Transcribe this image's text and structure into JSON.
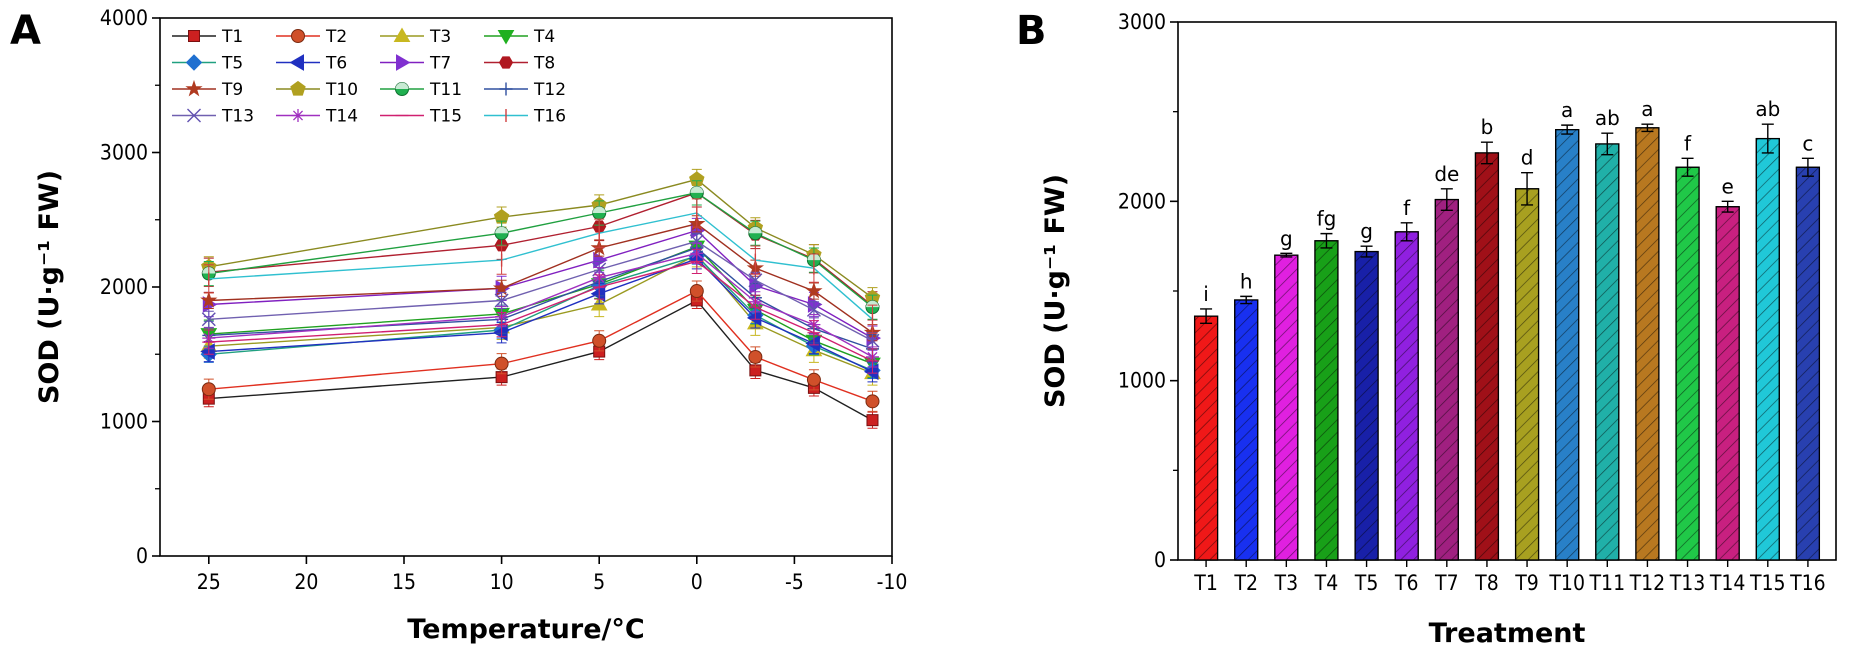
{
  "chart_data": [
    {
      "panel": "A",
      "type": "line",
      "xlabel": "Temperature/°C",
      "ylabel": "SOD (U·g⁻¹ FW)",
      "x": [
        25,
        10,
        5,
        0,
        -3,
        -6,
        -9
      ],
      "xticks": [
        "25",
        "20",
        "15",
        "10",
        "5",
        "0",
        "-5",
        "-10"
      ],
      "xtick_values": [
        25,
        20,
        15,
        10,
        5,
        0,
        -5,
        -10
      ],
      "xlim": [
        27.5,
        -10
      ],
      "ylim": [
        0,
        4000
      ],
      "yticks": [
        0,
        1000,
        2000,
        3000,
        4000
      ],
      "legend_position": "top-left",
      "series": [
        {
          "name": "T1",
          "color": "#202020",
          "marker": "square",
          "mcolor": "#cc2020",
          "values": [
            1170,
            1330,
            1520,
            1900,
            1380,
            1250,
            1010
          ]
        },
        {
          "name": "T2",
          "color": "#e03020",
          "marker": "circle",
          "mcolor": "#d0502a",
          "values": [
            1240,
            1430,
            1600,
            1970,
            1480,
            1310,
            1150
          ]
        },
        {
          "name": "T3",
          "color": "#9a9a20",
          "marker": "triangle-up",
          "mcolor": "#c8b820",
          "values": [
            1560,
            1700,
            1870,
            2240,
            1730,
            1530,
            1360
          ]
        },
        {
          "name": "T4",
          "color": "#20a020",
          "marker": "triangle-down",
          "mcolor": "#20b020",
          "values": [
            1650,
            1800,
            2020,
            2300,
            1830,
            1600,
            1430
          ]
        },
        {
          "name": "T5",
          "color": "#20a080",
          "marker": "diamond",
          "mcolor": "#2070d0",
          "values": [
            1500,
            1680,
            2010,
            2230,
            1790,
            1560,
            1380
          ]
        },
        {
          "name": "T6",
          "color": "#2030c0",
          "marker": "triangle-left",
          "mcolor": "#2030c0",
          "values": [
            1520,
            1660,
            1950,
            2210,
            1770,
            1580,
            1370
          ]
        },
        {
          "name": "T7",
          "color": "#8020c0",
          "marker": "triangle-right",
          "mcolor": "#8030d0",
          "values": [
            1870,
            1990,
            2200,
            2420,
            2010,
            1870,
            1620
          ]
        },
        {
          "name": "T8",
          "color": "#b02030",
          "marker": "hexagon",
          "mcolor": "#b01820",
          "values": [
            2110,
            2310,
            2450,
            2700,
            2390,
            2210,
            1860
          ]
        },
        {
          "name": "T9",
          "color": "#a03020",
          "marker": "star",
          "mcolor": "#b03a20",
          "values": [
            1900,
            1990,
            2290,
            2470,
            2140,
            1970,
            1660
          ]
        },
        {
          "name": "T10",
          "color": "#8a8a20",
          "marker": "pentagon",
          "mcolor": "#b0a020",
          "values": [
            2150,
            2520,
            2610,
            2800,
            2440,
            2240,
            1920
          ]
        },
        {
          "name": "T11",
          "color": "#20a040",
          "marker": "circle-half",
          "mcolor": "#20b050",
          "values": [
            2100,
            2400,
            2550,
            2700,
            2400,
            2200,
            1850
          ]
        },
        {
          "name": "T12",
          "color": "#3050a0",
          "marker": "plus",
          "mcolor": "#3050a0",
          "values": [
            1640,
            1760,
            2040,
            2290,
            1920,
            1690,
            1540
          ]
        },
        {
          "name": "T13",
          "color": "#7060b0",
          "marker": "x",
          "mcolor": "#6050b0",
          "values": [
            1760,
            1900,
            2130,
            2340,
            2050,
            1830,
            1600
          ]
        },
        {
          "name": "T14",
          "color": "#a030c0",
          "marker": "asterisk",
          "mcolor": "#a030c0",
          "values": [
            1620,
            1780,
            2070,
            2250,
            1890,
            1720,
            1480
          ]
        },
        {
          "name": "T15",
          "color": "#d02070",
          "marker": "none",
          "mcolor": "#d02070",
          "values": [
            1590,
            1720,
            2000,
            2190,
            1850,
            1660,
            1450
          ]
        },
        {
          "name": "T16",
          "color": "#30c0d0",
          "marker": "vbar",
          "mcolor": "#d04040",
          "values": [
            2060,
            2200,
            2400,
            2550,
            2200,
            2140,
            1760
          ]
        }
      ]
    },
    {
      "panel": "B",
      "type": "bar",
      "xlabel": "Treatment",
      "ylabel": "SOD (U·g⁻¹ FW)",
      "categories": [
        "T1",
        "T2",
        "T3",
        "T4",
        "T5",
        "T6",
        "T7",
        "T8",
        "T9",
        "T10",
        "T11",
        "T12",
        "T13",
        "T14",
        "T15",
        "T16"
      ],
      "values": [
        1360,
        1450,
        1700,
        1780,
        1720,
        1830,
        2010,
        2270,
        2070,
        2400,
        2320,
        2410,
        2190,
        1970,
        2350,
        2190
      ],
      "errors": [
        40,
        20,
        10,
        40,
        30,
        50,
        60,
        60,
        90,
        25,
        60,
        20,
        50,
        30,
        80,
        50
      ],
      "letters": [
        "i",
        "h",
        "g",
        "fg",
        "g",
        "f",
        "de",
        "b",
        "d",
        "a",
        "ab",
        "a",
        "f",
        "e",
        "ab",
        "c"
      ],
      "colors": [
        "#f01818",
        "#1830f0",
        "#e020e0",
        "#18a018",
        "#1820a8",
        "#9020e0",
        "#a02080",
        "#a01018",
        "#a8a020",
        "#2880c8",
        "#20b0a8",
        "#b87820",
        "#20c848",
        "#c82080",
        "#20c8d8",
        "#2840b0"
      ],
      "ylim": [
        0,
        3000
      ],
      "yticks": [
        0,
        1000,
        2000,
        3000
      ]
    }
  ],
  "panel_labels": [
    "A",
    "B"
  ]
}
